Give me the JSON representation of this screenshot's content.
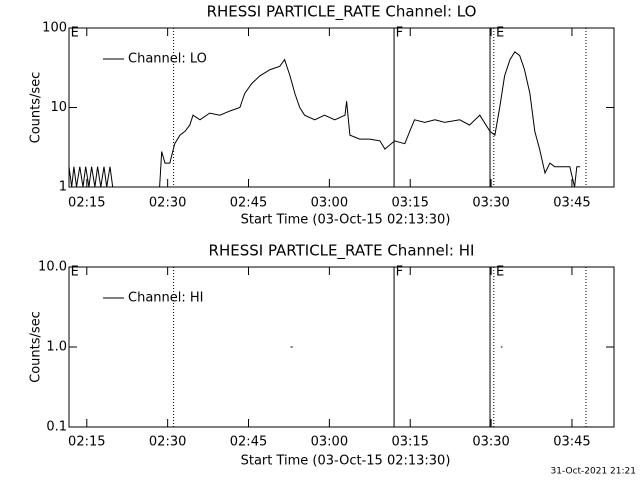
{
  "chart_data": [
    {
      "type": "line",
      "title": "RHESSI PARTICLE_RATE Channel: LO",
      "xlabel": "Start Time (03-Oct-15 02:13:30)",
      "ylabel": "Counts/sec",
      "log_y": true,
      "legend": "top-left",
      "xlim": [
        131.7,
        232.8
      ],
      "xticks": [
        {
          "value": 135,
          "label": "02:15"
        },
        {
          "value": 150,
          "label": "02:30"
        },
        {
          "value": 165,
          "label": "02:45"
        },
        {
          "value": 180,
          "label": "03:00"
        },
        {
          "value": 195,
          "label": "03:15"
        },
        {
          "value": 210,
          "label": "03:30"
        },
        {
          "value": 225,
          "label": "03:45"
        }
      ],
      "ylim": [
        1,
        100
      ],
      "yticks": [
        1,
        10,
        100
      ],
      "x": [
        131.7,
        132.2,
        132.6,
        133.1,
        133.7,
        134.3,
        134.8,
        135.4,
        135.9,
        136.5,
        137.0,
        137.6,
        138.2,
        138.7,
        139.3,
        139.8,
        141.1,
        148.5,
        148.9,
        149.5,
        150.4,
        151.3,
        152.3,
        153.2,
        154.1,
        154.7,
        156.0,
        157.8,
        159.7,
        161.5,
        163.4,
        164.3,
        165.6,
        167.1,
        169.0,
        170.8,
        171.7,
        172.7,
        173.6,
        174.5,
        175.4,
        177.3,
        179.1,
        181.0,
        182.9,
        183.2,
        183.8,
        185.6,
        187.5,
        189.4,
        190.3,
        192.1,
        194.0,
        194.9,
        195.8,
        197.7,
        199.6,
        201.4,
        204.2,
        206.0,
        207.9,
        209.8,
        210.7,
        211.6,
        212.5,
        213.5,
        214.4,
        215.3,
        216.2,
        217.2,
        218.1,
        219.0,
        220.0,
        220.9,
        221.8,
        224.6,
        225.5,
        225.9,
        226.5
      ],
      "series": [
        {
          "name": "Channel: LO",
          "color": "#000000",
          "values": [
            1.8,
            1,
            1.8,
            1,
            1.8,
            1,
            1.8,
            1,
            1.8,
            1,
            1.8,
            1,
            1.8,
            1,
            1.8,
            1,
            1,
            1,
            2.8,
            2,
            2,
            3.5,
            4.5,
            5,
            6,
            8,
            7,
            8.5,
            8,
            9,
            10,
            15,
            20,
            25,
            30,
            33,
            40,
            25,
            15,
            10,
            8,
            7,
            8,
            7,
            8,
            12,
            4.5,
            4,
            4,
            3.8,
            3,
            3.8,
            3.5,
            5,
            7,
            6.5,
            7,
            6.5,
            7,
            6,
            8,
            5,
            4.5,
            10,
            25,
            40,
            50,
            45,
            30,
            15,
            5,
            3,
            1.5,
            2,
            1.8,
            1.8,
            1,
            1.8,
            1.8
          ]
        }
      ],
      "markers": [
        {
          "x": 151.1,
          "style": "dotted"
        },
        {
          "x": 192.0,
          "style": "solid"
        },
        {
          "x": 209.8,
          "style": "solid"
        },
        {
          "x": 210.5,
          "style": "dotted"
        },
        {
          "x": 227.6,
          "style": "dotted"
        }
      ],
      "marker_labels": [
        {
          "x": 132.0,
          "label": "E"
        },
        {
          "x": 192.3,
          "label": "F"
        },
        {
          "x": 210.9,
          "label": "E"
        }
      ]
    },
    {
      "type": "line",
      "title": "RHESSI PARTICLE_RATE Channel: HI",
      "xlabel": "Start Time (03-Oct-15 02:13:30)",
      "ylabel": "Counts/sec",
      "log_y": true,
      "legend": "top-left",
      "xlim": [
        131.7,
        232.8
      ],
      "xticks": [
        {
          "value": 135,
          "label": "02:15"
        },
        {
          "value": 150,
          "label": "02:30"
        },
        {
          "value": 165,
          "label": "02:45"
        },
        {
          "value": 180,
          "label": "03:00"
        },
        {
          "value": 195,
          "label": "03:15"
        },
        {
          "value": 210,
          "label": "03:30"
        },
        {
          "value": 225,
          "label": "03:45"
        }
      ],
      "ylim": [
        0.1,
        10
      ],
      "yticks": [
        {
          "value": 0.1,
          "label": "0.1"
        },
        {
          "value": 1,
          "label": "1.0"
        },
        {
          "value": 10,
          "label": "10.0"
        }
      ],
      "x": [
        172.8,
        173.2,
        173.8,
        174.2,
        192.0,
        211.8,
        212.1
      ],
      "series": [
        {
          "name": "Channel: HI",
          "color": "#000000",
          "values": [
            1,
            1,
            null,
            1,
            null,
            1,
            1
          ]
        }
      ],
      "markers": [
        {
          "x": 151.1,
          "style": "dotted"
        },
        {
          "x": 192.0,
          "style": "solid"
        },
        {
          "x": 209.8,
          "style": "solid"
        },
        {
          "x": 210.5,
          "style": "dotted"
        },
        {
          "x": 227.6,
          "style": "dotted"
        }
      ],
      "marker_labels": [
        {
          "x": 132.0,
          "label": "E"
        },
        {
          "x": 192.3,
          "label": "F"
        },
        {
          "x": 210.9,
          "label": "E"
        }
      ]
    }
  ],
  "footer": "31-Oct-2021 21:21"
}
